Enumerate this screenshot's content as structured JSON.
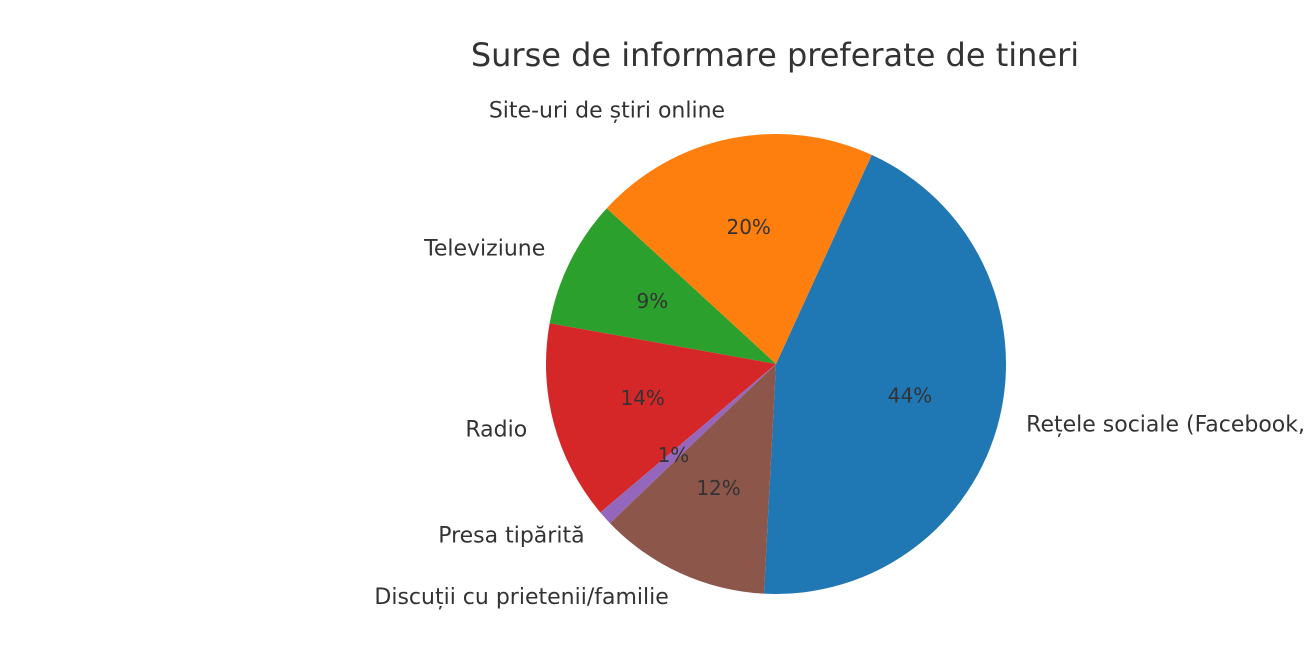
{
  "chart_data": {
    "type": "pie",
    "title": "Surse de informare preferate de tineri",
    "categories": [
      "Rețele sociale (Facebook, Instagram, TikTok)",
      "Site-uri de știri online",
      "Televiziune",
      "Radio",
      "Presa tipărită",
      "Discuții cu prietenii/familie"
    ],
    "values": [
      44,
      20,
      9,
      14,
      1,
      12
    ],
    "percent_labels": [
      "44%",
      "20%",
      "9%",
      "14%",
      "1%",
      "12%"
    ],
    "colors": [
      "#1f77b4",
      "#ff7f0e",
      "#2ca02c",
      "#d62728",
      "#9467bd",
      "#8c564b"
    ],
    "legend": "none",
    "grid": false
  }
}
